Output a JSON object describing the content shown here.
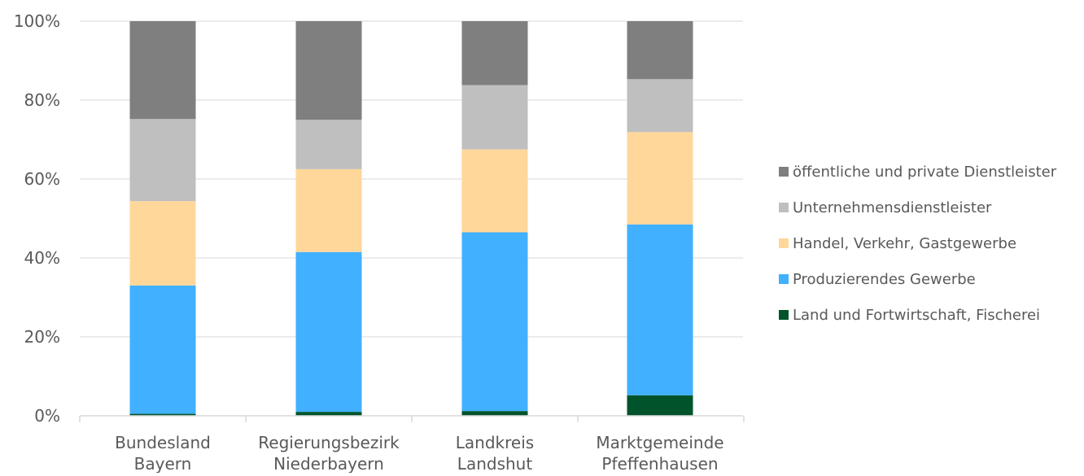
{
  "chart_data": {
    "type": "bar",
    "stacked": true,
    "normalized": true,
    "categories": [
      [
        "Bundesland",
        "Bayern"
      ],
      [
        "Regierungsbezirk",
        "Niederbayern"
      ],
      [
        "Landkreis",
        "Landshut"
      ],
      [
        "Marktgemeinde",
        "Pfeffenhausen"
      ]
    ],
    "series": [
      {
        "name": "Land und Fortwirtschaft, Fischerei",
        "color": "#00532a",
        "values": [
          0.5,
          1.0,
          1.2,
          5.2
        ]
      },
      {
        "name": "Produzierendes Gewerbe",
        "color": "#41b0ff",
        "values": [
          32.5,
          40.5,
          45.3,
          43.3
        ]
      },
      {
        "name": "Handel, Verkehr, Gastgewerbe",
        "color": "#ffd79a",
        "values": [
          21.4,
          21.0,
          21.0,
          23.4
        ]
      },
      {
        "name": "Unternehmensdienstleister",
        "color": "#bfbfbf",
        "values": [
          20.8,
          12.5,
          16.3,
          13.4
        ]
      },
      {
        "name": "öffentliche und private Dienstleister",
        "color": "#7f7f7f",
        "values": [
          24.8,
          25.0,
          16.2,
          14.7
        ]
      }
    ],
    "yticks": [
      "0%",
      "20%",
      "40%",
      "60%",
      "80%",
      "100%"
    ],
    "ylim": [
      0,
      100
    ],
    "grid": true,
    "legend_position": "right",
    "legend_order": [
      "öffentliche und private Dienstleister",
      "Unternehmensdienstleister",
      "Handel, Verkehr, Gastgewerbe",
      "Produzierendes Gewerbe",
      "Land und Fortwirtschaft, Fischerei"
    ]
  }
}
